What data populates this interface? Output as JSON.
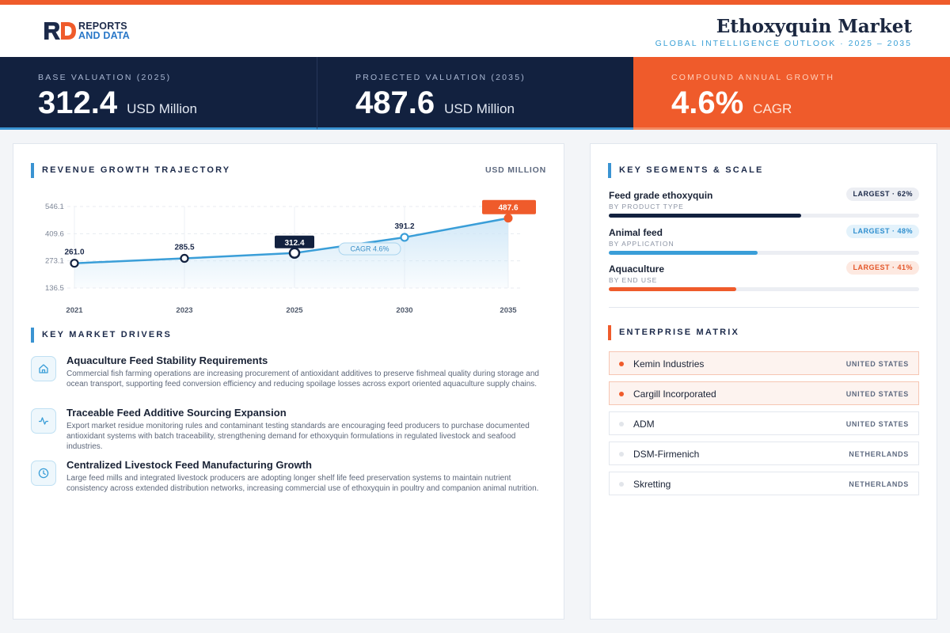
{
  "brand": {
    "line1": "REPORTS",
    "line2": "AND DATA"
  },
  "header": {
    "title": "Ethoxyquin Market",
    "subtitle": "GLOBAL INTELLIGENCE OUTLOOK  ·  2025 – 2035"
  },
  "kpis": [
    {
      "label": "BASE VALUATION (2025)",
      "value": "312.4",
      "unit": "USD Million"
    },
    {
      "label": "PROJECTED VALUATION (2035)",
      "value": "487.6",
      "unit": "USD Million"
    },
    {
      "label": "COMPOUND ANNUAL GROWTH",
      "value": "4.6%",
      "unit": "CAGR"
    }
  ],
  "revenue": {
    "heading": "REVENUE GROWTH TRAJECTORY",
    "unit": "USD MILLION"
  },
  "chart_data": {
    "type": "line",
    "title": "REVENUE GROWTH TRAJECTORY",
    "ylabel": "USD MILLION",
    "categories": [
      "2021",
      "2023",
      "2025",
      "2030",
      "2035"
    ],
    "values": [
      261.0,
      285.5,
      312.4,
      391.2,
      487.6
    ],
    "value_labels": [
      "261.0",
      "285.5",
      "312.4",
      "391.2",
      "487.6"
    ],
    "y_ticks": [
      "546.1",
      "409.6",
      "273.1",
      "136.5"
    ],
    "ylim": [
      136.5,
      546.1
    ],
    "annotation": "CAGR 4.6%",
    "highlight": {
      "base_year": "2025",
      "target_year": "2035"
    },
    "colors": {
      "line": "#3a9ed8",
      "area": "#cfe7f7",
      "base": "#12213f",
      "target": "#ef5b2b"
    },
    "grid": true
  },
  "drivers": {
    "heading": "KEY MARKET DRIVERS",
    "items": [
      {
        "icon": "home-icon",
        "title": "Aquaculture Feed Stability Requirements",
        "desc": "Commercial fish farming operations are increasing procurement of antioxidant additives to preserve fishmeal quality during storage and ocean transport, supporting feed conversion efficiency and reducing spoilage losses across export oriented aquaculture supply chains."
      },
      {
        "icon": "activity-icon",
        "title": "Traceable Feed Additive Sourcing Expansion",
        "desc": "Export market residue monitoring rules and contaminant testing standards are encouraging feed producers to purchase documented antioxidant systems with batch traceability, strengthening demand for ethoxyquin formulations in regulated livestock and seafood industries."
      },
      {
        "icon": "clock-icon",
        "title": "Centralized Livestock Feed Manufacturing Growth",
        "desc": "Large feed mills and integrated livestock producers are adopting longer shelf life feed preservation systems to maintain nutrient consistency across extended distribution networks, increasing commercial use of ethoxyquin in poultry and companion animal nutrition."
      }
    ]
  },
  "segments": {
    "heading": "KEY SEGMENTS & SCALE",
    "items": [
      {
        "name": "Feed grade ethoxyquin",
        "sub": "BY PRODUCT TYPE",
        "badge": "LARGEST · 62%",
        "share": 62,
        "color": "#12213f",
        "badge_bg": "#eceef3",
        "badge_fg": "#1c2a4a"
      },
      {
        "name": "Animal feed",
        "sub": "BY APPLICATION",
        "badge": "LARGEST · 48%",
        "share": 48,
        "color": "#3a9ed8",
        "badge_bg": "#e3f2fb",
        "badge_fg": "#2f8fcf"
      },
      {
        "name": "Aquaculture",
        "sub": "BY END USE",
        "badge": "LARGEST · 41%",
        "share": 41,
        "color": "#ef5b2b",
        "badge_bg": "#fde9e1",
        "badge_fg": "#e4572a"
      }
    ]
  },
  "enterprise": {
    "heading": "ENTERPRISE MATRIX",
    "items": [
      {
        "name": "Kemin Industries",
        "country": "UNITED STATES",
        "highlight": true
      },
      {
        "name": "Cargill Incorporated",
        "country": "UNITED STATES",
        "highlight": true
      },
      {
        "name": "ADM",
        "country": "UNITED STATES",
        "highlight": false
      },
      {
        "name": "DSM-Firmenich",
        "country": "NETHERLANDS",
        "highlight": false
      },
      {
        "name": "Skretting",
        "country": "NETHERLANDS",
        "highlight": false
      }
    ]
  }
}
